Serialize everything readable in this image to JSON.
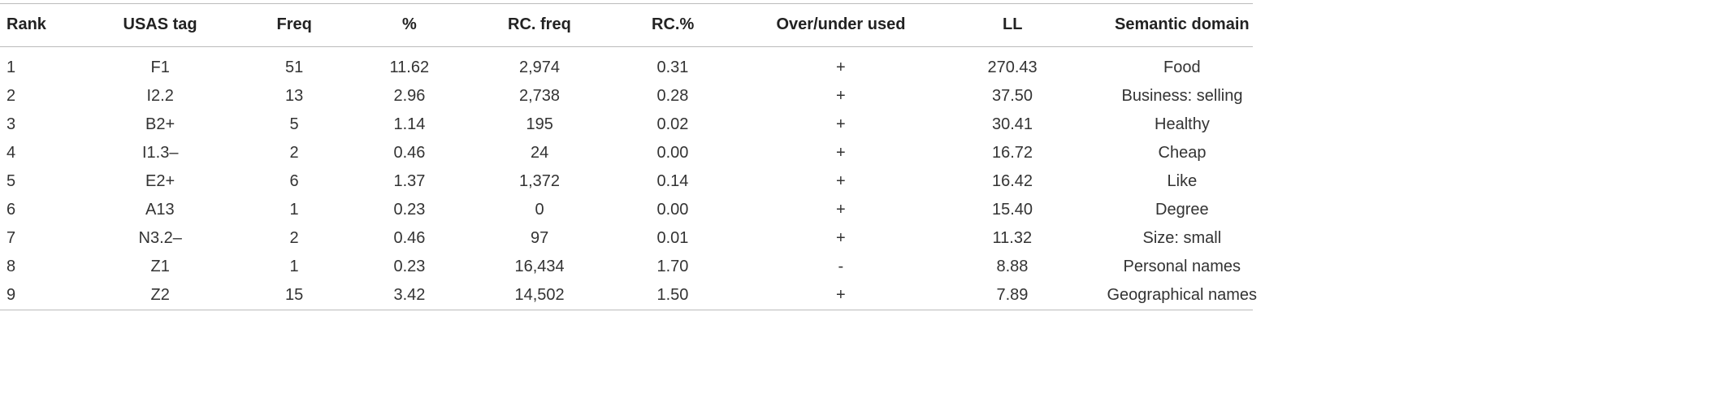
{
  "table": {
    "header": [
      "Rank",
      "USAS tag",
      "Freq",
      "%",
      "RC. freq",
      "RC.%",
      "Over/under used",
      "LL",
      "Semantic domain"
    ],
    "rows": [
      [
        "1",
        "F1",
        "51",
        "11.62",
        "2,974",
        "0.31",
        "+",
        "270.43",
        "Food"
      ],
      [
        "2",
        "I2.2",
        "13",
        "2.96",
        "2,738",
        "0.28",
        "+",
        "37.50",
        "Business: selling"
      ],
      [
        "3",
        "B2+",
        "5",
        "1.14",
        "195",
        "0.02",
        "+",
        "30.41",
        "Healthy"
      ],
      [
        "4",
        "I1.3–",
        "2",
        "0.46",
        "24",
        "0.00",
        "+",
        "16.72",
        "Cheap"
      ],
      [
        "5",
        "E2+",
        "6",
        "1.37",
        "1,372",
        "0.14",
        "+",
        "16.42",
        "Like"
      ],
      [
        "6",
        "A13",
        "1",
        "0.23",
        "0",
        "0.00",
        "+",
        "15.40",
        "Degree"
      ],
      [
        "7",
        "N3.2–",
        "2",
        "0.46",
        "97",
        "0.01",
        "+",
        "11.32",
        "Size: small"
      ],
      [
        "8",
        "Z1",
        "1",
        "0.23",
        "16,434",
        "1.70",
        "-",
        "8.88",
        "Personal names"
      ],
      [
        "9",
        "Z2",
        "15",
        "3.42",
        "14,502",
        "1.50",
        "+",
        "7.89",
        "Geographical names"
      ]
    ]
  }
}
